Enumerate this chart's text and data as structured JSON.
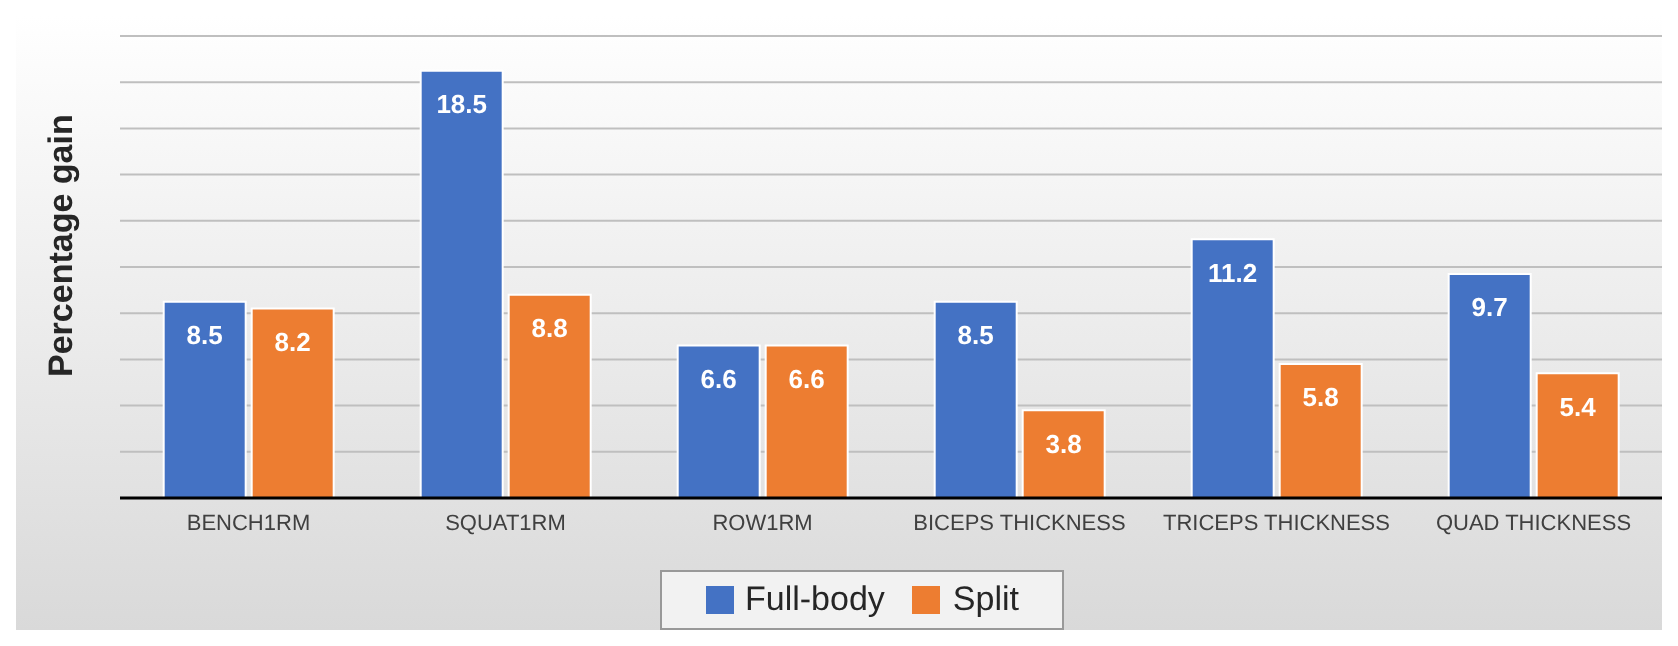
{
  "chart_data": {
    "type": "bar",
    "ylabel": "Percentage gain",
    "categories": [
      "BENCH1RM",
      "SQUAT1RM",
      "ROW1RM",
      "BICEPS THICKNESS",
      "TRICEPS THICKNESS",
      "QUAD THICKNESS"
    ],
    "series": [
      {
        "name": "Full-body",
        "color": "#4472c4",
        "values": [
          8.5,
          18.5,
          6.6,
          8.5,
          11.2,
          9.7
        ]
      },
      {
        "name": "Split",
        "color": "#ed7d31",
        "values": [
          8.2,
          8.8,
          6.6,
          3.8,
          5.8,
          5.4
        ]
      }
    ],
    "ylim": [
      0,
      20
    ],
    "tick_labels": "x",
    "grid": "y",
    "legend": "bottom",
    "data_labels": true
  }
}
